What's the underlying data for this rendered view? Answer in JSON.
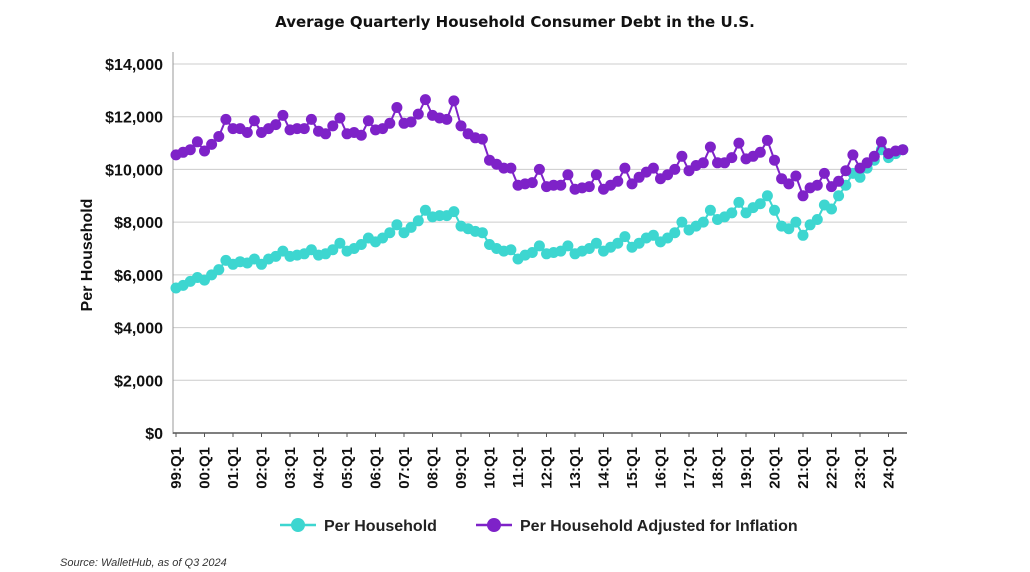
{
  "chart_data": {
    "type": "line",
    "title": "Average Quarterly Household Consumer Debt in the U.S.",
    "ylabel": "Per Household",
    "xlabel": "",
    "ylim": [
      0,
      14000
    ],
    "yticks": [
      "$0",
      "$2,000",
      "$4,000",
      "$6,000",
      "$8,000",
      "$10,000",
      "$12,000",
      "$14,000"
    ],
    "ytick_values": [
      0,
      2000,
      4000,
      6000,
      8000,
      10000,
      12000,
      14000
    ],
    "xticks": [
      "99:Q1",
      "00:Q1",
      "01:Q1",
      "02:Q1",
      "03:Q1",
      "04:Q1",
      "05:Q1",
      "06:Q1",
      "07:Q1",
      "08:Q1",
      "09:Q1",
      "10:Q1",
      "11:Q1",
      "12:Q1",
      "13:Q1",
      "14:Q1",
      "15:Q1",
      "16:Q1",
      "17:Q1",
      "18:Q1",
      "19:Q1",
      "20:Q1",
      "21:Q1",
      "22:Q1",
      "23:Q1",
      "24:Q1"
    ],
    "grid": true,
    "legend_position": "bottom",
    "series": [
      {
        "name": "Per Household",
        "color": "#3dd6d0",
        "values": [
          5500,
          5600,
          5750,
          5900,
          5800,
          6000,
          6200,
          6550,
          6400,
          6500,
          6450,
          6600,
          6400,
          6600,
          6700,
          6900,
          6700,
          6750,
          6800,
          6950,
          6750,
          6800,
          6950,
          7200,
          6900,
          7000,
          7150,
          7400,
          7250,
          7400,
          7600,
          7900,
          7600,
          7800,
          8050,
          8450,
          8200,
          8250,
          8250,
          8400,
          7850,
          7750,
          7650,
          7600,
          7150,
          7000,
          6900,
          6950,
          6600,
          6750,
          6850,
          7100,
          6800,
          6850,
          6900,
          7100,
          6800,
          6900,
          7000,
          7200,
          6900,
          7050,
          7200,
          7450,
          7050,
          7200,
          7400,
          7500,
          7250,
          7400,
          7600,
          8000,
          7700,
          7850,
          8000,
          8450,
          8100,
          8200,
          8350,
          8750,
          8350,
          8550,
          8700,
          9000,
          8450,
          7850,
          7750,
          8000,
          7500,
          7900,
          8100,
          8650,
          8500,
          9000,
          9400,
          9850,
          9700,
          10050,
          10350,
          10750,
          10450,
          10600,
          10750
        ]
      },
      {
        "name": "Per Household Adjusted for Inflation",
        "color": "#7e22c8",
        "values": [
          10550,
          10650,
          10750,
          11050,
          10700,
          10950,
          11250,
          11900,
          11550,
          11550,
          11400,
          11850,
          11400,
          11550,
          11700,
          12050,
          11500,
          11550,
          11550,
          11900,
          11450,
          11350,
          11650,
          11950,
          11350,
          11400,
          11300,
          11850,
          11500,
          11550,
          11750,
          12350,
          11750,
          11800,
          12100,
          12650,
          12050,
          11950,
          11900,
          12600,
          11650,
          11350,
          11200,
          11150,
          10350,
          10200,
          10050,
          10050,
          9400,
          9450,
          9500,
          10000,
          9350,
          9400,
          9400,
          9800,
          9250,
          9300,
          9350,
          9800,
          9250,
          9400,
          9550,
          10050,
          9450,
          9700,
          9900,
          10050,
          9650,
          9800,
          10000,
          10500,
          9950,
          10150,
          10250,
          10850,
          10250,
          10250,
          10450,
          11000,
          10400,
          10500,
          10650,
          11100,
          10350,
          9650,
          9450,
          9750,
          9000,
          9300,
          9400,
          9850,
          9350,
          9550,
          9950,
          10550,
          10050,
          10250,
          10500,
          11050,
          10600,
          10700,
          10750
        ]
      }
    ]
  },
  "source": "Source: WalletHub, as of Q3 2024"
}
